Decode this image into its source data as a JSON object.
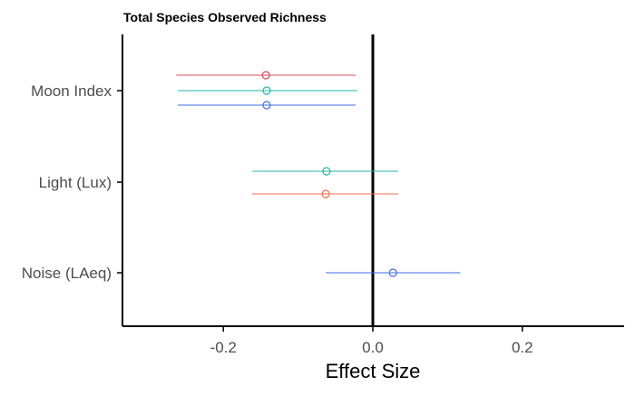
{
  "chart_data": {
    "type": "forest",
    "title": "Total Species Observed Richness",
    "xlabel": "Effect Size",
    "ylabel": "",
    "xlim": [
      -0.33,
      0.33
    ],
    "x_ticks": [
      -0.2,
      0.0,
      0.2
    ],
    "x_tick_labels": [
      "-0.2",
      "0.0",
      "0.2"
    ],
    "reference_line_x": 0,
    "categories": [
      "Noise (LAeq)",
      "Light (Lux)",
      "Moon Index"
    ],
    "grid": false,
    "legend": "none",
    "series": [
      {
        "color": "#d84a5c",
        "points": [
          {
            "category": "Moon Index",
            "estimate": -0.143,
            "lower": -0.263,
            "upper": -0.023
          }
        ]
      },
      {
        "color": "#f06b4f",
        "points": [
          {
            "category": "Light (Lux)",
            "estimate": -0.063,
            "lower": -0.162,
            "upper": 0.034
          }
        ]
      },
      {
        "color": "#20b7a8",
        "points": [
          {
            "category": "Moon Index",
            "estimate": -0.142,
            "lower": -0.261,
            "upper": -0.021
          },
          {
            "category": "Light (Lux)",
            "estimate": -0.062,
            "lower": -0.161,
            "upper": 0.034
          }
        ]
      },
      {
        "color": "#3d6fe0",
        "points": [
          {
            "category": "Moon Index",
            "estimate": -0.142,
            "lower": -0.261,
            "upper": -0.023
          },
          {
            "category": "Noise (LAeq)",
            "estimate": 0.027,
            "lower": -0.063,
            "upper": 0.117
          }
        ]
      }
    ]
  }
}
